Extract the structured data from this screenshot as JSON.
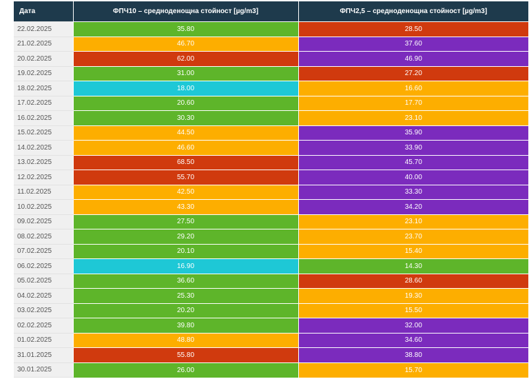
{
  "table": {
    "headers": {
      "date": "Дата",
      "pm10": "ФПЧ10 – средноденощна стойност [µg/m3]",
      "pm25": "ФПЧ2,5 – средноденощна стойност [µg/m3]"
    },
    "colors": {
      "cyan": "#1ec8d6",
      "green": "#5eb52a",
      "orange": "#fdae00",
      "red": "#d03a0e",
      "purple": "#7b2bbd"
    },
    "rows": [
      {
        "date": "22.02.2025",
        "pm10": "35.80",
        "pm10_color": "green",
        "pm25": "28.50",
        "pm25_color": "red"
      },
      {
        "date": "21.02.2025",
        "pm10": "46.70",
        "pm10_color": "orange",
        "pm25": "37.60",
        "pm25_color": "purple"
      },
      {
        "date": "20.02.2025",
        "pm10": "62.00",
        "pm10_color": "red",
        "pm25": "46.90",
        "pm25_color": "purple"
      },
      {
        "date": "19.02.2025",
        "pm10": "31.00",
        "pm10_color": "green",
        "pm25": "27.20",
        "pm25_color": "red"
      },
      {
        "date": "18.02.2025",
        "pm10": "18.00",
        "pm10_color": "cyan",
        "pm25": "16.60",
        "pm25_color": "orange"
      },
      {
        "date": "17.02.2025",
        "pm10": "20.60",
        "pm10_color": "green",
        "pm25": "17.70",
        "pm25_color": "orange"
      },
      {
        "date": "16.02.2025",
        "pm10": "30.30",
        "pm10_color": "green",
        "pm25": "23.10",
        "pm25_color": "orange"
      },
      {
        "date": "15.02.2025",
        "pm10": "44.50",
        "pm10_color": "orange",
        "pm25": "35.90",
        "pm25_color": "purple"
      },
      {
        "date": "14.02.2025",
        "pm10": "46.60",
        "pm10_color": "orange",
        "pm25": "33.90",
        "pm25_color": "purple"
      },
      {
        "date": "13.02.2025",
        "pm10": "68.50",
        "pm10_color": "red",
        "pm25": "45.70",
        "pm25_color": "purple"
      },
      {
        "date": "12.02.2025",
        "pm10": "55.70",
        "pm10_color": "red",
        "pm25": "40.00",
        "pm25_color": "purple"
      },
      {
        "date": "11.02.2025",
        "pm10": "42.50",
        "pm10_color": "orange",
        "pm25": "33.30",
        "pm25_color": "purple"
      },
      {
        "date": "10.02.2025",
        "pm10": "43.30",
        "pm10_color": "orange",
        "pm25": "34.20",
        "pm25_color": "purple"
      },
      {
        "date": "09.02.2025",
        "pm10": "27.50",
        "pm10_color": "green",
        "pm25": "23.10",
        "pm25_color": "orange"
      },
      {
        "date": "08.02.2025",
        "pm10": "29.20",
        "pm10_color": "green",
        "pm25": "23.70",
        "pm25_color": "orange"
      },
      {
        "date": "07.02.2025",
        "pm10": "20.10",
        "pm10_color": "green",
        "pm25": "15.40",
        "pm25_color": "orange"
      },
      {
        "date": "06.02.2025",
        "pm10": "16.90",
        "pm10_color": "cyan",
        "pm25": "14.30",
        "pm25_color": "green"
      },
      {
        "date": "05.02.2025",
        "pm10": "36.60",
        "pm10_color": "green",
        "pm25": "28.60",
        "pm25_color": "red"
      },
      {
        "date": "04.02.2025",
        "pm10": "25.30",
        "pm10_color": "green",
        "pm25": "19.30",
        "pm25_color": "orange"
      },
      {
        "date": "03.02.2025",
        "pm10": "20.20",
        "pm10_color": "green",
        "pm25": "15.50",
        "pm25_color": "orange"
      },
      {
        "date": "02.02.2025",
        "pm10": "39.80",
        "pm10_color": "green",
        "pm25": "32.00",
        "pm25_color": "purple"
      },
      {
        "date": "01.02.2025",
        "pm10": "48.80",
        "pm10_color": "orange",
        "pm25": "34.60",
        "pm25_color": "purple"
      },
      {
        "date": "31.01.2025",
        "pm10": "55.80",
        "pm10_color": "red",
        "pm25": "38.80",
        "pm25_color": "purple"
      },
      {
        "date": "30.01.2025",
        "pm10": "26.00",
        "pm10_color": "green",
        "pm25": "15.70",
        "pm25_color": "orange"
      }
    ]
  }
}
